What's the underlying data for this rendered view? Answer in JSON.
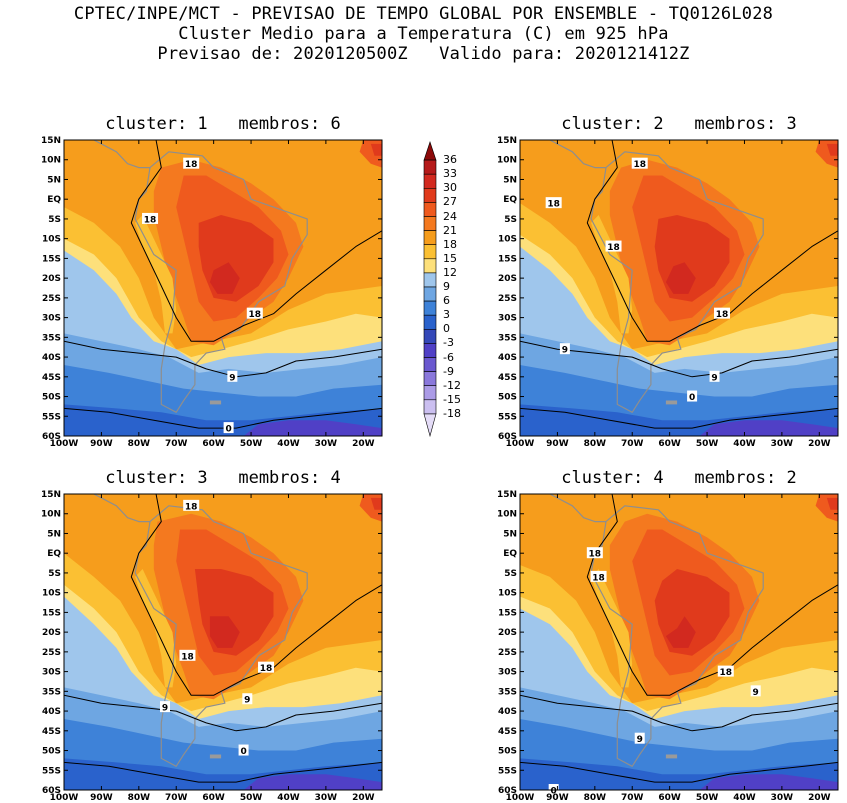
{
  "header": {
    "line1": "CPTEC/INPE/MCT - PREVISAO DE TEMPO GLOBAL POR ENSEMBLE - TQ0126L028",
    "line2": "Cluster Medio para a Temperatura (C) em 925 hPa",
    "line3": "Previsao de: 2020120500Z   Valido para: 2020121412Z"
  },
  "panels": [
    {
      "title": "cluster: 1   membros: 6",
      "contour_labels": [
        {
          "text": "18",
          "lon": -66,
          "lat": 9
        },
        {
          "text": "18",
          "lon": -77,
          "lat": -5
        },
        {
          "text": "18",
          "lon": -49,
          "lat": -29
        },
        {
          "text": "9",
          "lon": -55,
          "lat": -45
        },
        {
          "text": "0",
          "lon": -56,
          "lat": -58
        }
      ]
    },
    {
      "title": "cluster: 2   membros: 3",
      "contour_labels": [
        {
          "text": "18",
          "lon": -68,
          "lat": 9
        },
        {
          "text": "18",
          "lon": -91,
          "lat": -1
        },
        {
          "text": "18",
          "lon": -75,
          "lat": -12
        },
        {
          "text": "18",
          "lon": -46,
          "lat": -29
        },
        {
          "text": "9",
          "lon": -88,
          "lat": -38
        },
        {
          "text": "9",
          "lon": -48,
          "lat": -45
        },
        {
          "text": "0",
          "lon": -54,
          "lat": -50
        }
      ]
    },
    {
      "title": "cluster: 3   membros: 4",
      "contour_labels": [
        {
          "text": "18",
          "lon": -66,
          "lat": 12
        },
        {
          "text": "18",
          "lon": -67,
          "lat": -26
        },
        {
          "text": "18",
          "lon": -46,
          "lat": -29
        },
        {
          "text": "9",
          "lon": -73,
          "lat": -39
        },
        {
          "text": "9",
          "lon": -51,
          "lat": -37
        },
        {
          "text": "0",
          "lon": -52,
          "lat": -50
        }
      ]
    },
    {
      "title": "cluster: 4   membros: 2",
      "contour_labels": [
        {
          "text": "18",
          "lon": -80,
          "lat": 0
        },
        {
          "text": "18",
          "lon": -79,
          "lat": -6
        },
        {
          "text": "18",
          "lon": -45,
          "lat": -30
        },
        {
          "text": "9",
          "lon": -37,
          "lat": -35
        },
        {
          "text": "9",
          "lon": -68,
          "lat": -47
        },
        {
          "text": "0",
          "lon": -91,
          "lat": -60
        }
      ]
    }
  ],
  "axes": {
    "lat_ticks": [
      "15N",
      "10N",
      "5N",
      "EQ",
      "5S",
      "10S",
      "15S",
      "20S",
      "25S",
      "30S",
      "35S",
      "40S",
      "45S",
      "50S",
      "55S",
      "60S"
    ],
    "lon_ticks": [
      "100W",
      "90W",
      "80W",
      "70W",
      "60W",
      "50W",
      "40W",
      "30W",
      "20W"
    ]
  },
  "colorbar": {
    "levels": [
      "36",
      "33",
      "30",
      "27",
      "24",
      "21",
      "18",
      "15",
      "12",
      "9",
      "6",
      "3",
      "0",
      "-3",
      "-6",
      "-9",
      "-12",
      "-15",
      "-18"
    ],
    "colors": [
      "#8c0a0a",
      "#b51a1a",
      "#d2291f",
      "#e03a1c",
      "#ef5a1e",
      "#f4791f",
      "#f69d1c",
      "#fbc033",
      "#fde07b",
      "#9fc6ec",
      "#6ea6e2",
      "#3e82d8",
      "#2a62cc",
      "#3448b8",
      "#5040c6",
      "#6a58cf",
      "#8a78db",
      "#ab9be6",
      "#cbbff0",
      "#e4dcf7"
    ]
  }
}
